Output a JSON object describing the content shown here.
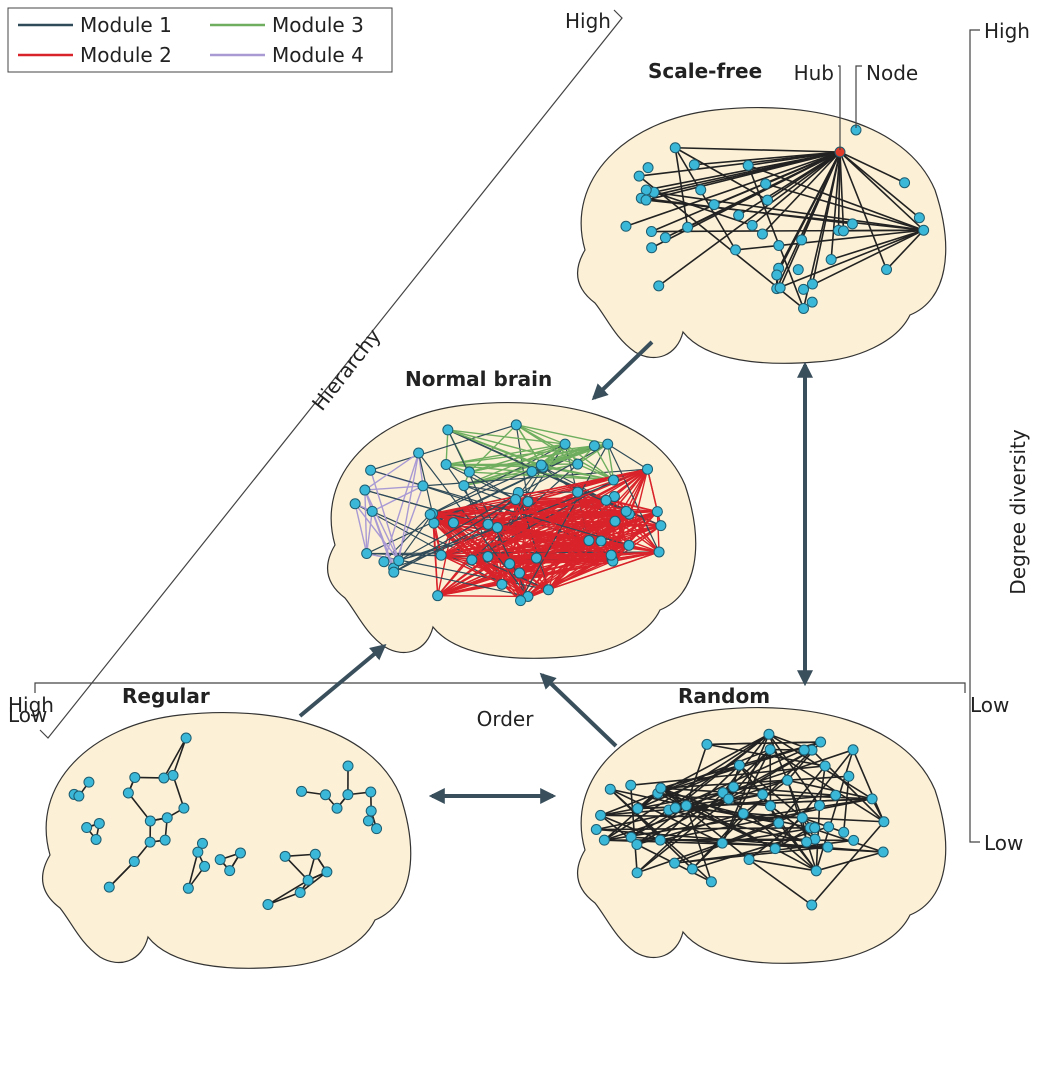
{
  "legend": [
    {
      "label": "Module 1",
      "color": "#2f4a58"
    },
    {
      "label": "Module 2",
      "color": "#d9232b"
    },
    {
      "label": "Module 3",
      "color": "#6fae5f"
    },
    {
      "label": "Module 4",
      "color": "#a99ad4"
    }
  ],
  "hierarchy_axis": {
    "title": "Hierarchy",
    "high": "High",
    "low": "Low"
  },
  "degree_axis": {
    "title": "Degree diversity",
    "high": "High",
    "low": "Low"
  },
  "order_axis": {
    "title": "Order",
    "high": "High",
    "low": "Low"
  },
  "networks": {
    "scale_free": {
      "title": "Scale-free",
      "hub_label": "Hub",
      "node_label": "Node"
    },
    "normal": {
      "title": "Normal brain"
    },
    "regular": {
      "title": "Regular"
    },
    "random": {
      "title": "Random"
    }
  }
}
